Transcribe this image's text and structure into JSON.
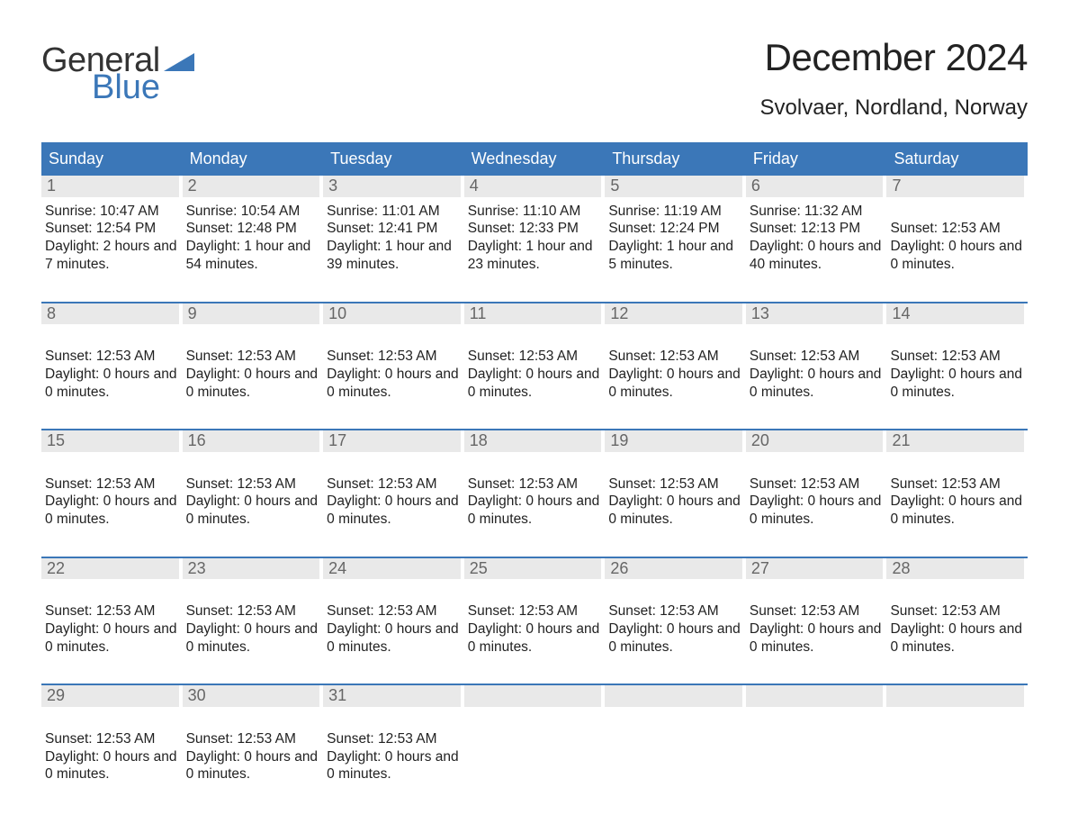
{
  "brand": {
    "part1": "General",
    "part2": "Blue",
    "text_color": "#333333",
    "accent_color": "#3b77b8"
  },
  "title": "December 2024",
  "location": "Svolvaer, Nordland, Norway",
  "colors": {
    "header_bg": "#3b77b8",
    "header_fg": "#ffffff",
    "daynum_bg": "#e9e9e9",
    "daynum_fg": "#666666",
    "week_divider": "#3b77b8",
    "body_text": "#222222",
    "page_bg": "#ffffff"
  },
  "dow": [
    "Sunday",
    "Monday",
    "Tuesday",
    "Wednesday",
    "Thursday",
    "Friday",
    "Saturday"
  ],
  "weeks": [
    [
      {
        "n": "1",
        "lines": [
          "Sunrise: 10:47 AM",
          "Sunset: 12:54 PM",
          "Daylight: 2 hours and 7 minutes."
        ]
      },
      {
        "n": "2",
        "lines": [
          "Sunrise: 10:54 AM",
          "Sunset: 12:48 PM",
          "Daylight: 1 hour and 54 minutes."
        ]
      },
      {
        "n": "3",
        "lines": [
          "Sunrise: 11:01 AM",
          "Sunset: 12:41 PM",
          "Daylight: 1 hour and 39 minutes."
        ]
      },
      {
        "n": "4",
        "lines": [
          "Sunrise: 11:10 AM",
          "Sunset: 12:33 PM",
          "Daylight: 1 hour and 23 minutes."
        ]
      },
      {
        "n": "5",
        "lines": [
          "Sunrise: 11:19 AM",
          "Sunset: 12:24 PM",
          "Daylight: 1 hour and 5 minutes."
        ]
      },
      {
        "n": "6",
        "lines": [
          "Sunrise: 11:32 AM",
          "Sunset: 12:13 PM",
          "Daylight: 0 hours and 40 minutes."
        ]
      },
      {
        "n": "7",
        "lines": [
          "",
          "Sunset: 12:53 AM",
          "Daylight: 0 hours and 0 minutes."
        ]
      }
    ],
    [
      {
        "n": "8",
        "lines": [
          "",
          "Sunset: 12:53 AM",
          "Daylight: 0 hours and 0 minutes."
        ]
      },
      {
        "n": "9",
        "lines": [
          "",
          "Sunset: 12:53 AM",
          "Daylight: 0 hours and 0 minutes."
        ]
      },
      {
        "n": "10",
        "lines": [
          "",
          "Sunset: 12:53 AM",
          "Daylight: 0 hours and 0 minutes."
        ]
      },
      {
        "n": "11",
        "lines": [
          "",
          "Sunset: 12:53 AM",
          "Daylight: 0 hours and 0 minutes."
        ]
      },
      {
        "n": "12",
        "lines": [
          "",
          "Sunset: 12:53 AM",
          "Daylight: 0 hours and 0 minutes."
        ]
      },
      {
        "n": "13",
        "lines": [
          "",
          "Sunset: 12:53 AM",
          "Daylight: 0 hours and 0 minutes."
        ]
      },
      {
        "n": "14",
        "lines": [
          "",
          "Sunset: 12:53 AM",
          "Daylight: 0 hours and 0 minutes."
        ]
      }
    ],
    [
      {
        "n": "15",
        "lines": [
          "",
          "Sunset: 12:53 AM",
          "Daylight: 0 hours and 0 minutes."
        ]
      },
      {
        "n": "16",
        "lines": [
          "",
          "Sunset: 12:53 AM",
          "Daylight: 0 hours and 0 minutes."
        ]
      },
      {
        "n": "17",
        "lines": [
          "",
          "Sunset: 12:53 AM",
          "Daylight: 0 hours and 0 minutes."
        ]
      },
      {
        "n": "18",
        "lines": [
          "",
          "Sunset: 12:53 AM",
          "Daylight: 0 hours and 0 minutes."
        ]
      },
      {
        "n": "19",
        "lines": [
          "",
          "Sunset: 12:53 AM",
          "Daylight: 0 hours and 0 minutes."
        ]
      },
      {
        "n": "20",
        "lines": [
          "",
          "Sunset: 12:53 AM",
          "Daylight: 0 hours and 0 minutes."
        ]
      },
      {
        "n": "21",
        "lines": [
          "",
          "Sunset: 12:53 AM",
          "Daylight: 0 hours and 0 minutes."
        ]
      }
    ],
    [
      {
        "n": "22",
        "lines": [
          "",
          "Sunset: 12:53 AM",
          "Daylight: 0 hours and 0 minutes."
        ]
      },
      {
        "n": "23",
        "lines": [
          "",
          "Sunset: 12:53 AM",
          "Daylight: 0 hours and 0 minutes."
        ]
      },
      {
        "n": "24",
        "lines": [
          "",
          "Sunset: 12:53 AM",
          "Daylight: 0 hours and 0 minutes."
        ]
      },
      {
        "n": "25",
        "lines": [
          "",
          "Sunset: 12:53 AM",
          "Daylight: 0 hours and 0 minutes."
        ]
      },
      {
        "n": "26",
        "lines": [
          "",
          "Sunset: 12:53 AM",
          "Daylight: 0 hours and 0 minutes."
        ]
      },
      {
        "n": "27",
        "lines": [
          "",
          "Sunset: 12:53 AM",
          "Daylight: 0 hours and 0 minutes."
        ]
      },
      {
        "n": "28",
        "lines": [
          "",
          "Sunset: 12:53 AM",
          "Daylight: 0 hours and 0 minutes."
        ]
      }
    ],
    [
      {
        "n": "29",
        "lines": [
          "",
          "Sunset: 12:53 AM",
          "Daylight: 0 hours and 0 minutes."
        ]
      },
      {
        "n": "30",
        "lines": [
          "",
          "Sunset: 12:53 AM",
          "Daylight: 0 hours and 0 minutes."
        ]
      },
      {
        "n": "31",
        "lines": [
          "",
          "Sunset: 12:53 AM",
          "Daylight: 0 hours and 0 minutes."
        ]
      },
      {
        "n": "",
        "lines": []
      },
      {
        "n": "",
        "lines": []
      },
      {
        "n": "",
        "lines": []
      },
      {
        "n": "",
        "lines": []
      }
    ]
  ]
}
